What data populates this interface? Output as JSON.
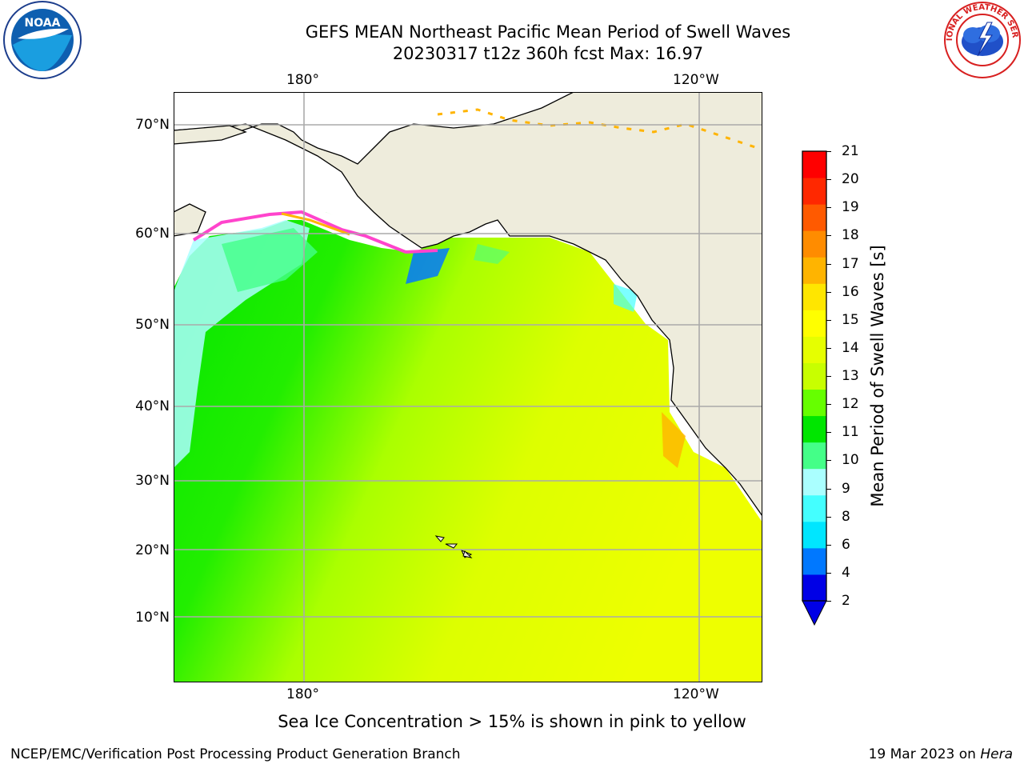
{
  "header": {
    "title_line1": "GEFS MEAN Northeast Pacific Mean Period of Swell Waves",
    "title_line2": "20230317 t12z 360h fcst   Max: 16.97"
  },
  "map": {
    "lon_labels": [
      "180°",
      "120°W"
    ],
    "lat_labels": [
      "70°N",
      "60°N",
      "50°N",
      "40°N",
      "30°N",
      "20°N",
      "10°N"
    ],
    "land_color": "#eeecdc",
    "ice_note_colors": [
      "#ff44cc",
      "#ffb400",
      "#ffee00"
    ]
  },
  "colorbar": {
    "label": "Mean Period of Swell Waves [s]",
    "ticks": [
      "21",
      "20",
      "19",
      "18",
      "17",
      "16",
      "15",
      "14",
      "13",
      "12",
      "11",
      "10",
      "9",
      "8",
      "6",
      "4",
      "2"
    ],
    "colors": [
      "#0000e6",
      "#0078ff",
      "#00e6ff",
      "#44ffff",
      "#aaffff",
      "#44ff88",
      "#00e600",
      "#66ff00",
      "#c8ff00",
      "#e6ff00",
      "#ffff00",
      "#ffe600",
      "#ffb400",
      "#ff8c00",
      "#ff5a00",
      "#ff2800",
      "#ff0000"
    ]
  },
  "caption": "Sea Ice Concentration > 15% is shown in pink to yellow",
  "footer": {
    "left": "NCEP/EMC/Verification Post Processing Product Generation Branch",
    "right_date": "19 Mar 2023 on ",
    "right_host": "Hera"
  },
  "logos": {
    "noaa_text": "NOAA",
    "nws_text": "NATIONAL WEATHER SERVICE"
  }
}
